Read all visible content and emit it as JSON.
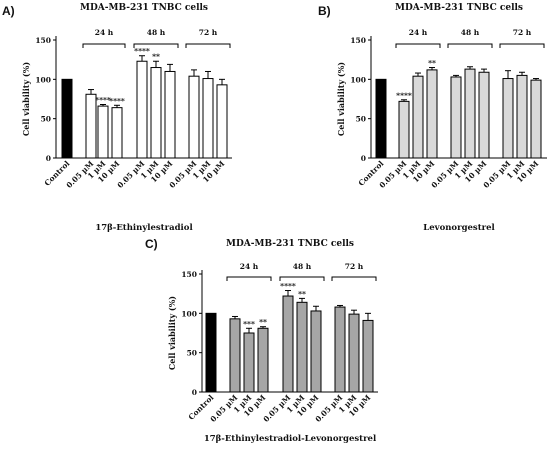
{
  "figure": {
    "panel_letters": [
      "A)",
      "B)",
      "C)"
    ]
  },
  "chart_data": [
    {
      "type": "bar",
      "panel": "A)",
      "title": "MDA-MB-231 TNBC cells",
      "xlabel": "17β-Ethinylestradiol",
      "ylabel": "Cell viability (%)",
      "ylim": [
        0,
        150
      ],
      "yticks": [
        0,
        50,
        100,
        150
      ],
      "categories": [
        "Control",
        "0.05 µM",
        "1 µM",
        "10 µM",
        "0.05 µM",
        "1 µM",
        "10 µM",
        "0.05 µM",
        "1 µM",
        "10 µM"
      ],
      "values": [
        100,
        81,
        66,
        64,
        123,
        115,
        110,
        104,
        101,
        93
      ],
      "errors": [
        0,
        6,
        2,
        3,
        7,
        8,
        9,
        8,
        9,
        7
      ],
      "significance": [
        "",
        "",
        "****",
        "****",
        "****",
        "**",
        "",
        "",
        "",
        ""
      ],
      "groups": [
        {
          "label": "24 h",
          "from": 1,
          "to": 3
        },
        {
          "label": "48 h",
          "from": 4,
          "to": 6
        },
        {
          "label": "72 h",
          "from": 7,
          "to": 9
        }
      ],
      "colors": {
        "control": "#000000",
        "treated": "#ffffff"
      }
    },
    {
      "type": "bar",
      "panel": "B)",
      "title": "MDA-MB-231 TNBC cells",
      "xlabel": "Levonorgestrel",
      "ylabel": "Cell viability (%)",
      "ylim": [
        0,
        150
      ],
      "yticks": [
        0,
        50,
        100,
        150
      ],
      "categories": [
        "Control",
        "0.05 µM",
        "1 µM",
        "10 µM",
        "0.05 µM",
        "1 µM",
        "10 µM",
        "0.05 µM",
        "1 µM",
        "10 µM"
      ],
      "values": [
        100,
        72,
        104,
        112,
        103,
        113,
        109,
        101,
        105,
        99
      ],
      "errors": [
        0,
        2,
        4,
        3,
        2,
        3,
        4,
        10,
        4,
        2
      ],
      "significance": [
        "",
        "****",
        "",
        "**",
        "",
        "",
        "",
        "",
        "",
        ""
      ],
      "groups": [
        {
          "label": "24 h",
          "from": 1,
          "to": 3
        },
        {
          "label": "48 h",
          "from": 4,
          "to": 6
        },
        {
          "label": "72 h",
          "from": 7,
          "to": 9
        }
      ],
      "colors": {
        "control": "#000000",
        "treated": "#d9d9d9"
      }
    },
    {
      "type": "bar",
      "panel": "C)",
      "title": "MDA-MB-231 TNBC cells",
      "xlabel": "17β-Ethinylestradiol-Levonorgestrel",
      "ylabel": "Cell viability (%)",
      "ylim": [
        0,
        150
      ],
      "yticks": [
        0,
        50,
        100,
        150
      ],
      "categories": [
        "Control",
        "0.05 µM",
        "1 µM",
        "10 µM",
        "0.05 µM",
        "1 µM",
        "10 µM",
        "0.05 µM",
        "1 µM",
        "10 µM"
      ],
      "values": [
        100,
        93,
        75,
        81,
        122,
        114,
        103,
        108,
        99,
        91
      ],
      "errors": [
        0,
        3,
        6,
        2,
        7,
        5,
        6,
        2,
        5,
        9
      ],
      "significance": [
        "",
        "",
        "***",
        "**",
        "****",
        "**",
        "",
        "",
        "",
        ""
      ],
      "groups": [
        {
          "label": "24 h",
          "from": 1,
          "to": 3
        },
        {
          "label": "48 h",
          "from": 4,
          "to": 6
        },
        {
          "label": "72 h",
          "from": 7,
          "to": 9
        }
      ],
      "colors": {
        "control": "#000000",
        "treated": "#a6a6a6"
      }
    }
  ]
}
